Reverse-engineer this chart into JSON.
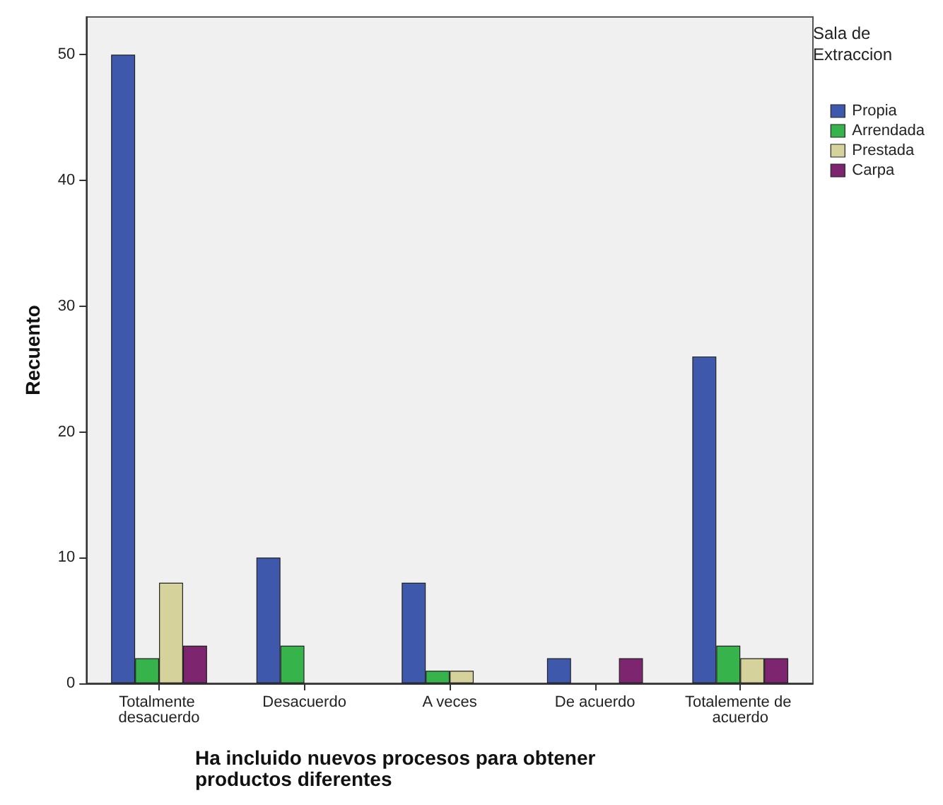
{
  "chart_data": {
    "type": "bar",
    "xlabel": "Ha incluido nuevos procesos para obtener productos diferentes",
    "ylabel": "Recuento",
    "legend_title": "Sala de Extraccion",
    "categories": [
      "Totalmente desacuerdo",
      "Desacuerdo",
      "A veces",
      "De acuerdo",
      "Totalemente de acuerdo"
    ],
    "series": [
      {
        "name": "Propia",
        "color": "#3e58ac",
        "values": [
          50,
          10,
          8,
          2,
          26
        ]
      },
      {
        "name": "Arrendada",
        "color": "#36b34a",
        "values": [
          2,
          3,
          1,
          null,
          3
        ]
      },
      {
        "name": "Prestada",
        "color": "#d6d29c",
        "values": [
          8,
          null,
          1,
          null,
          2
        ]
      },
      {
        "name": "Carpa",
        "color": "#7d256f",
        "values": [
          3,
          null,
          null,
          2,
          2
        ]
      }
    ],
    "ylim": [
      0,
      53
    ],
    "yticks": [
      0,
      10,
      20,
      30,
      40,
      50
    ],
    "grid": false,
    "legend": "right"
  }
}
